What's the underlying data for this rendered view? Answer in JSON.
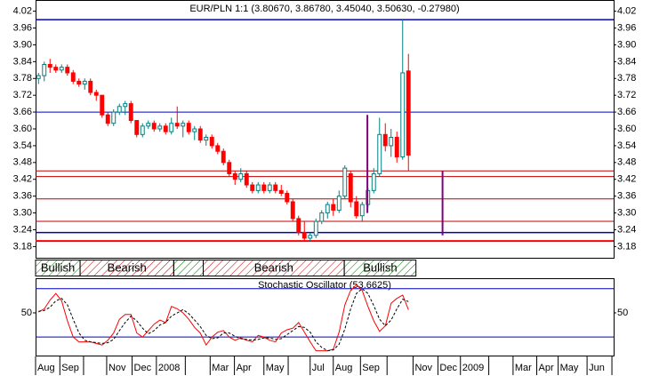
{
  "chart_data": [
    {
      "type": "candlestick",
      "title": "EUR/PLN 1:1 (3.80670, 3.86780, 3.45040, 3.50630, -0.27980)",
      "up_color": "#008080",
      "down_color": "#ff0000",
      "xlim": [
        0,
        100
      ],
      "ylim": [
        3.14,
        4.06
      ],
      "yticks": [
        4.02,
        3.96,
        {
          "value": 3.9,
          "label": "3.90"
        },
        3.84,
        3.78,
        3.72,
        3.66,
        {
          "value": 3.6,
          "label": "3.60"
        },
        3.54,
        3.48,
        3.42,
        3.36,
        {
          "value": 3.3,
          "label": "3.30"
        },
        3.24,
        3.18
      ],
      "ohlc": [
        [
          3.78,
          3.8,
          3.76,
          3.79
        ],
        [
          3.79,
          3.84,
          3.77,
          3.83
        ],
        [
          3.83,
          3.85,
          3.8,
          3.82
        ],
        [
          3.82,
          3.83,
          3.8,
          3.81
        ],
        [
          3.81,
          3.83,
          3.8,
          3.82
        ],
        [
          3.82,
          3.83,
          3.79,
          3.8
        ],
        [
          3.8,
          3.81,
          3.76,
          3.77
        ],
        [
          3.77,
          3.78,
          3.75,
          3.76
        ],
        [
          3.76,
          3.78,
          3.74,
          3.77
        ],
        [
          3.77,
          3.78,
          3.72,
          3.73
        ],
        [
          3.73,
          3.74,
          3.7,
          3.72
        ],
        [
          3.72,
          3.72,
          3.64,
          3.65
        ],
        [
          3.65,
          3.66,
          3.61,
          3.62
        ],
        [
          3.62,
          3.67,
          3.61,
          3.66
        ],
        [
          3.66,
          3.69,
          3.65,
          3.68
        ],
        [
          3.68,
          3.7,
          3.65,
          3.69
        ],
        [
          3.69,
          3.7,
          3.62,
          3.63
        ],
        [
          3.63,
          3.63,
          3.57,
          3.58
        ],
        [
          3.58,
          3.62,
          3.57,
          3.61
        ],
        [
          3.61,
          3.63,
          3.6,
          3.62
        ],
        [
          3.62,
          3.63,
          3.59,
          3.6
        ],
        [
          3.6,
          3.62,
          3.59,
          3.61
        ],
        [
          3.61,
          3.62,
          3.58,
          3.59
        ],
        [
          3.59,
          3.64,
          3.58,
          3.62
        ],
        [
          3.62,
          3.68,
          3.6,
          3.61
        ],
        [
          3.61,
          3.63,
          3.57,
          3.62
        ],
        [
          3.62,
          3.63,
          3.58,
          3.59
        ],
        [
          3.59,
          3.61,
          3.56,
          3.6
        ],
        [
          3.6,
          3.61,
          3.55,
          3.56
        ],
        [
          3.56,
          3.58,
          3.54,
          3.57
        ],
        [
          3.57,
          3.58,
          3.53,
          3.54
        ],
        [
          3.54,
          3.55,
          3.51,
          3.52
        ],
        [
          3.52,
          3.53,
          3.47,
          3.48
        ],
        [
          3.48,
          3.49,
          3.43,
          3.44
        ],
        [
          3.44,
          3.45,
          3.4,
          3.42
        ],
        [
          3.42,
          3.46,
          3.41,
          3.44
        ],
        [
          3.44,
          3.45,
          3.39,
          3.4
        ],
        [
          3.4,
          3.41,
          3.37,
          3.38
        ],
        [
          3.38,
          3.41,
          3.37,
          3.4
        ],
        [
          3.4,
          3.41,
          3.37,
          3.38
        ],
        [
          3.38,
          3.41,
          3.37,
          3.4
        ],
        [
          3.4,
          3.41,
          3.37,
          3.38
        ],
        [
          3.38,
          3.4,
          3.36,
          3.37
        ],
        [
          3.37,
          3.38,
          3.33,
          3.34
        ],
        [
          3.34,
          3.35,
          3.27,
          3.28
        ],
        [
          3.28,
          3.29,
          3.22,
          3.23
        ],
        [
          3.23,
          3.27,
          3.2,
          3.21
        ],
        [
          3.21,
          3.23,
          3.2,
          3.22
        ],
        [
          3.22,
          3.28,
          3.21,
          3.27
        ],
        [
          3.27,
          3.31,
          3.26,
          3.3
        ],
        [
          3.3,
          3.34,
          3.28,
          3.33
        ],
        [
          3.33,
          3.35,
          3.29,
          3.31
        ],
        [
          3.31,
          3.38,
          3.3,
          3.36
        ],
        [
          3.36,
          3.47,
          3.35,
          3.46
        ],
        [
          3.44,
          3.45,
          3.32,
          3.34
        ],
        [
          3.34,
          3.36,
          3.28,
          3.29
        ],
        [
          3.29,
          3.34,
          3.27,
          3.33
        ],
        [
          3.33,
          3.39,
          3.32,
          3.38
        ],
        [
          3.38,
          3.46,
          3.37,
          3.44
        ],
        [
          3.44,
          3.64,
          3.43,
          3.58
        ],
        [
          3.58,
          3.62,
          3.52,
          3.54
        ],
        [
          3.54,
          3.6,
          3.5,
          3.57
        ],
        [
          3.57,
          3.59,
          3.48,
          3.5
        ],
        [
          3.5,
          3.99,
          3.49,
          3.8
        ],
        [
          3.8067,
          3.8678,
          3.4504,
          3.5063
        ]
      ],
      "hlines": [
        {
          "value": 3.99,
          "color": "#0000c0",
          "width": 1.5
        },
        {
          "value": 3.66,
          "color": "#0000c0",
          "width": 1
        },
        {
          "value": 3.45,
          "color": "#c00000",
          "width": 1
        },
        {
          "value": 3.43,
          "color": "#c00000",
          "width": 1
        },
        {
          "value": 3.35,
          "color": "#c00000",
          "width": 1
        },
        {
          "value": 3.27,
          "color": "#c00000",
          "width": 1
        },
        {
          "value": 3.23,
          "color": "#0000c0",
          "width": 1.5
        },
        {
          "value": 3.2,
          "color": "#ff0000",
          "width": 2
        }
      ],
      "segments": [
        {
          "x": 57.4,
          "y1": 3.65,
          "y2": 3.3,
          "color": "#800080"
        },
        {
          "x": 70.4,
          "y1": 3.45,
          "y2": 3.22,
          "color": "#800080"
        }
      ],
      "signals": [
        {
          "label": "Bullish",
          "start": 0,
          "end": 7.7,
          "color": "#008000"
        },
        {
          "label": "Bearish",
          "start": 7.7,
          "end": 23.9,
          "color": "#c00000"
        },
        {
          "label": null,
          "start": 23.9,
          "end": 29,
          "color": "#008000"
        },
        {
          "label": "Bearish",
          "start": 29,
          "end": 53.4,
          "color": "#c00000"
        },
        {
          "label": "Bullish",
          "start": 53.4,
          "end": 65.8,
          "color": "#008000"
        }
      ]
    },
    {
      "type": "line",
      "title": "Stochastic Oscillator (53.6625)",
      "xlim": [
        0,
        100
      ],
      "ylim": [
        -3,
        93
      ],
      "yticks": [
        50
      ],
      "hlines": [
        {
          "value": 80,
          "color": "#0000c0",
          "width": 1
        },
        {
          "value": 20,
          "color": "#0000c0",
          "width": 1
        }
      ],
      "xticks": [
        {
          "value": 0,
          "label": "Aug"
        },
        {
          "value": 4.2,
          "label": "Sep"
        },
        {
          "value": 8.3,
          "label": null
        },
        {
          "value": 12.3,
          "label": "Nov"
        },
        {
          "value": 16.7,
          "label": "Dec"
        },
        {
          "value": 20.9,
          "label": "2008"
        },
        {
          "value": 25.9,
          "label": null
        },
        {
          "value": 30.2,
          "label": "Mar"
        },
        {
          "value": 34.4,
          "label": "Apr"
        },
        {
          "value": 39.5,
          "label": "May"
        },
        {
          "value": 43.7,
          "label": null
        },
        {
          "value": 47.5,
          "label": "Jul"
        },
        {
          "value": 51.5,
          "label": "Aug"
        },
        {
          "value": 56.2,
          "label": "Sep"
        },
        {
          "value": 60.8,
          "label": null
        },
        {
          "value": 65.3,
          "label": "Nov"
        },
        {
          "value": 69.6,
          "label": "Dec"
        },
        {
          "value": 73.5,
          "label": "2009"
        },
        {
          "value": 78.4,
          "label": null
        },
        {
          "value": 82.6,
          "label": "Mar"
        },
        {
          "value": 86.7,
          "label": "Apr"
        },
        {
          "value": 90.4,
          "label": "May"
        },
        {
          "value": 95.4,
          "label": "Jun"
        },
        {
          "value": 99.7,
          "label": null
        }
      ],
      "series": [
        {
          "name": "%K",
          "color": "#ff0000",
          "dash": false,
          "values": [
            51,
            55,
            66,
            74,
            65,
            40,
            20,
            14,
            14,
            14,
            12,
            10,
            16,
            25,
            42,
            48,
            48,
            25,
            20,
            28,
            36,
            41,
            38,
            58,
            55,
            50,
            42,
            32,
            25,
            10,
            20,
            26,
            28,
            20,
            16,
            19,
            16,
            14,
            22,
            20,
            16,
            14,
            25,
            29,
            31,
            38,
            26,
            14,
            3,
            3,
            3,
            5,
            26,
            60,
            78,
            85,
            78,
            58,
            40,
            27,
            34,
            62,
            68,
            72,
            53.6625
          ]
        },
        {
          "name": "%D",
          "color": "#000000",
          "dash": true,
          "values": [
            52,
            53,
            57,
            65,
            68,
            60,
            42,
            25,
            16,
            14,
            13,
            12,
            13,
            17,
            28,
            38,
            46,
            40,
            31,
            24,
            28,
            35,
            38,
            46,
            50,
            54,
            49,
            41,
            33,
            22,
            18,
            19,
            25,
            25,
            21,
            18,
            17,
            16,
            17,
            19,
            19,
            17,
            18,
            23,
            28,
            33,
            32,
            26,
            14,
            7,
            3,
            4,
            11,
            30,
            55,
            74,
            80,
            74,
            59,
            42,
            34,
            41,
            55,
            67,
            64
          ]
        }
      ]
    }
  ]
}
